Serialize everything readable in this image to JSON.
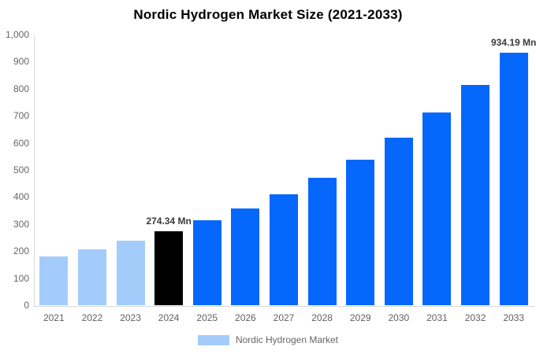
{
  "title": "Nordic Hydrogen Market Size (2021-2033)",
  "legend": {
    "label": "Nordic Hydrogen Market",
    "swatch_color": "#a3ccfb"
  },
  "colors": {
    "historical": "#a3ccfb",
    "highlight": "#000000",
    "forecast": "#0667fc",
    "axis_line": "#d9d9d9",
    "tick_text": "#666666",
    "annotation_text": "#3a3a3a"
  },
  "chart_data": {
    "type": "bar",
    "title": "Nordic Hydrogen Market Size (2021-2033)",
    "categories": [
      "2021",
      "2022",
      "2023",
      "2024",
      "2025",
      "2026",
      "2027",
      "2028",
      "2029",
      "2030",
      "2031",
      "2032",
      "2033"
    ],
    "values": [
      180,
      206,
      238,
      274.34,
      313,
      357,
      410,
      471,
      538,
      618,
      711,
      815,
      934.19
    ],
    "bar_roles": [
      "historical",
      "historical",
      "historical",
      "highlight",
      "forecast",
      "forecast",
      "forecast",
      "forecast",
      "forecast",
      "forecast",
      "forecast",
      "forecast",
      "forecast"
    ],
    "annotations": [
      {
        "category": "2024",
        "text": "274.34 Mn"
      },
      {
        "category": "2033",
        "text": "934.19 Mn"
      }
    ],
    "xlabel": "",
    "ylabel": "",
    "ylim": [
      0,
      1000
    ],
    "ytick_step": 100,
    "ytick_format_thousands": true,
    "grid": false,
    "legend_position": "bottom",
    "legend_entries": [
      "Nordic Hydrogen Market"
    ]
  }
}
